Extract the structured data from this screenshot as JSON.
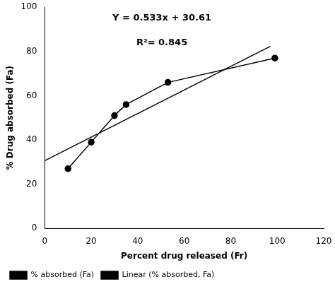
{
  "chart_data": {
    "type": "line",
    "xlabel": "Percent drug released (Fr)",
    "ylabel": "% Drug absorbed (Fa)",
    "annotations": [
      "Y = 0.533x + 30.61",
      "R²= 0.845"
    ],
    "series": [
      {
        "name": "% absorbed (Fa)",
        "color": "#000000",
        "marker": "circle",
        "line_style": "solid",
        "x": [
          10,
          20,
          30,
          35,
          53,
          99
        ],
        "values": [
          27,
          39,
          51,
          56,
          66,
          77
        ]
      },
      {
        "name": "Linear (% absorbed, Fa)",
        "color": "#000000",
        "marker": "none",
        "line_style": "solid",
        "x": [
          0,
          97
        ],
        "values": [
          30.61,
          82.311
        ]
      }
    ],
    "xlim": [
      0,
      120
    ],
    "ylim": [
      0,
      100
    ],
    "xticks": [
      0,
      20,
      40,
      60,
      80,
      100,
      120
    ],
    "yticks": [
      0,
      20,
      40,
      60,
      80,
      100
    ],
    "grid": false,
    "legend": "lower left"
  }
}
